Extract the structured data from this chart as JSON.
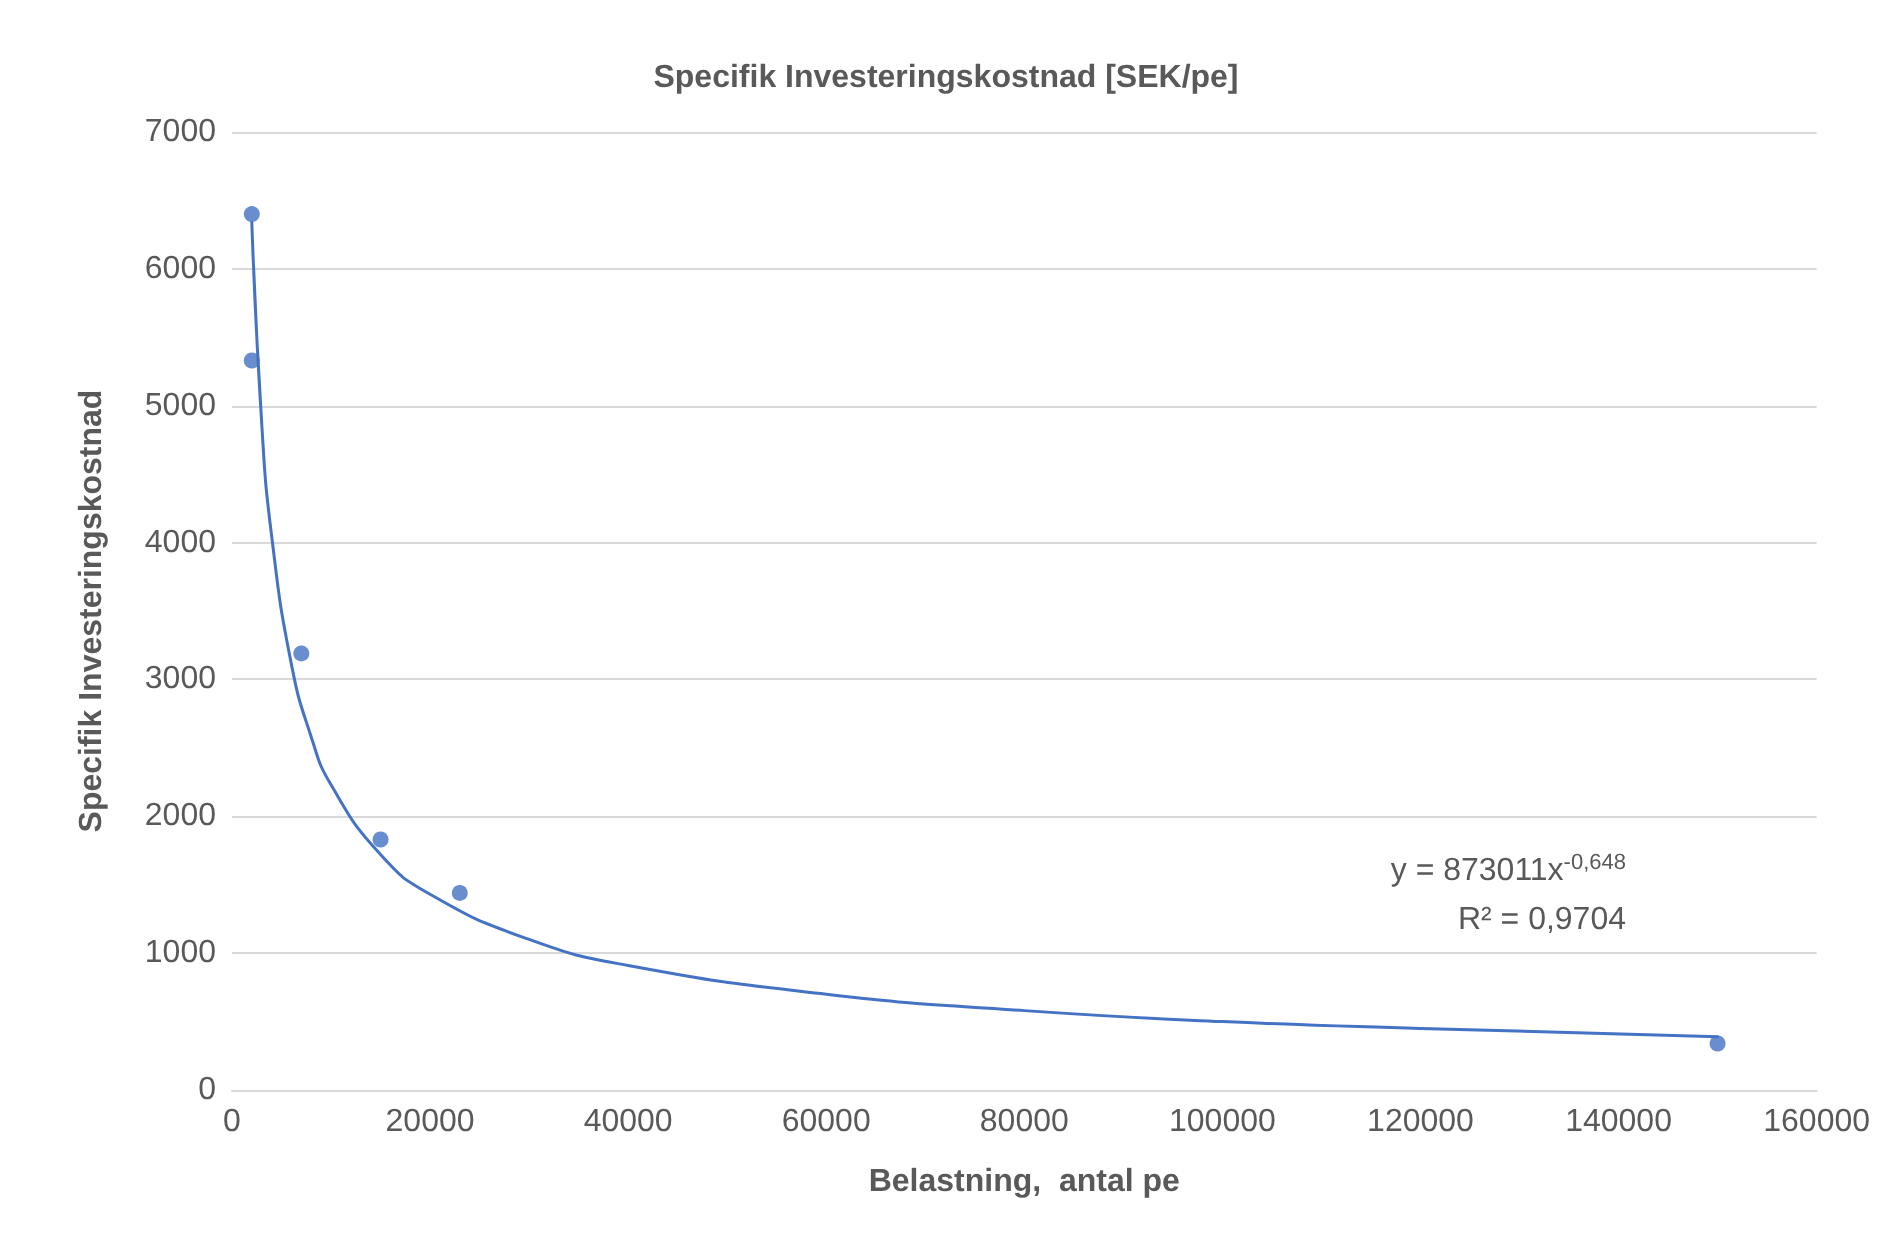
{
  "chart_data": {
    "type": "scatter",
    "title": "Specifik Investeringskostnad [SEK/pe]",
    "xlabel": "Belastning,  antal pe",
    "ylabel": "Specifik Investeringskostnad",
    "series": [
      {
        "color": "#4472c4",
        "x": [
          2000,
          2000,
          7000,
          15000,
          23000,
          150000
        ],
        "values": [
          6400,
          5330,
          3190,
          1830,
          1440,
          340
        ]
      },
      {
        "type": "line",
        "color": "#4472c4",
        "marker": "none",
        "x": [
          2000,
          3000,
          4000,
          6000,
          8000,
          10000,
          15000,
          20000,
          30000,
          40000,
          60000,
          80000,
          100000,
          120000,
          150000
        ],
        "values": [
          6340,
          4870,
          4050,
          3110,
          2580,
          2230,
          1720,
          1430,
          1100,
          910,
          700,
          580,
          500,
          450,
          390
        ]
      }
    ],
    "annotations": [
      "y = 873011x$^{-0,648}$",
      "R² = 0,9704"
    ],
    "xlim": [
      0,
      160000
    ],
    "xticks": [
      0,
      20000,
      40000,
      60000,
      80000,
      100000,
      120000,
      140000,
      160000
    ],
    "ylim": [
      0,
      7000
    ],
    "yticks": [
      0,
      1000,
      2000,
      3000,
      4000,
      5000,
      6000,
      7000
    ],
    "grid": "y",
    "marker": "circle"
  }
}
